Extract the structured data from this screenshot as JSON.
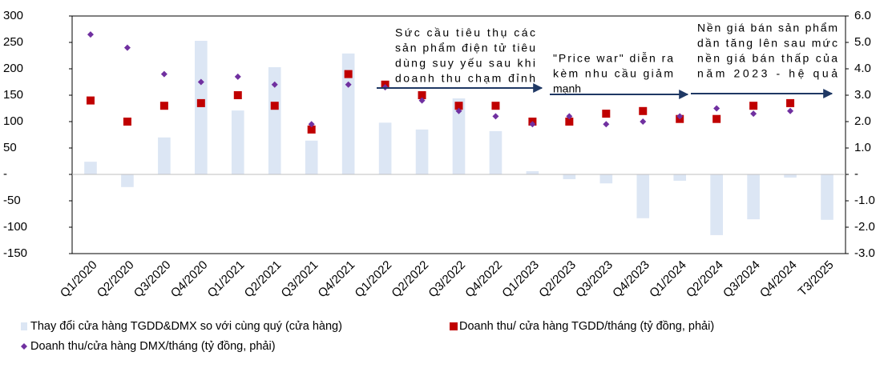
{
  "chart_data": {
    "type": "bar",
    "categories": [
      "Q1/2020",
      "Q2/2020",
      "Q3/2020",
      "Q4/2020",
      "Q1/2021",
      "Q2/2021",
      "Q3/2021",
      "Q4/2021",
      "Q1/2022",
      "Q2/2022",
      "Q3/2022",
      "Q4/2022",
      "Q1/2023",
      "Q2/2023",
      "Q3/2023",
      "Q4/2023",
      "Q1/2024",
      "Q2/2024",
      "Q3/2024",
      "Q4/2024",
      "T3/2025"
    ],
    "series": [
      {
        "name": "Thay đổi cửa hàng TGDD&DMX so với cùng quý (cửa hàng)",
        "type": "bar",
        "color": "#dce6f4",
        "values": [
          24,
          -24,
          70,
          253,
          121,
          203,
          64,
          229,
          98,
          85,
          144,
          82,
          6,
          -9,
          -17,
          -83,
          -12,
          -115,
          -85,
          -6,
          -86
        ]
      },
      {
        "name": "Doanh thu/ cửa hàng TGDD/tháng (tỷ đồng, phải)",
        "type": "scatter",
        "marker": "square",
        "axis": "y2",
        "color": "#c00000",
        "values": [
          2.8,
          2.0,
          2.6,
          2.7,
          3.0,
          2.6,
          1.7,
          3.8,
          3.4,
          3.0,
          2.6,
          2.6,
          2.0,
          2.0,
          2.3,
          2.4,
          2.1,
          2.1,
          2.6,
          2.7,
          null
        ]
      },
      {
        "name": "Doanh thu/cửa hàng DMX/tháng (tỷ đồng, phải)",
        "type": "scatter",
        "marker": "diamond",
        "axis": "y2",
        "color": "#7030a0",
        "values": [
          5.3,
          4.8,
          3.8,
          3.5,
          3.7,
          3.4,
          1.9,
          3.4,
          3.3,
          2.8,
          2.4,
          2.2,
          1.9,
          2.2,
          1.9,
          2.0,
          2.2,
          2.5,
          2.3,
          2.4,
          null
        ]
      }
    ],
    "ylim": [
      -150,
      300
    ],
    "yticks": [
      -150,
      -100,
      -50,
      {
        "value": 0,
        "label": "-"
      },
      50,
      100,
      150,
      200,
      250,
      300
    ],
    "y2lim": [
      -3,
      6
    ],
    "y2ticks": [
      {
        "value": -3,
        "label": "-3.0"
      },
      {
        "value": -2,
        "label": "-2.0"
      },
      {
        "value": -1,
        "label": "-1.0"
      },
      {
        "value": 0,
        "label": "-"
      },
      {
        "value": 1,
        "label": "1.0"
      },
      {
        "value": 2,
        "label": "2.0"
      },
      {
        "value": 3,
        "label": "3.0"
      },
      {
        "value": 4,
        "label": "4.0"
      },
      {
        "value": 5,
        "label": "5.0"
      },
      {
        "value": 6,
        "label": "6.0"
      }
    ],
    "annotations": [
      {
        "lines": [
          "Sức cầu tiêu thụ các",
          "sản phẩm điện tử tiêu",
          "dùng suy yếu sau khi",
          "doanh thu chạm đỉnh"
        ]
      },
      {
        "lines": [
          "\"Price war\" diễn ra",
          "kèm nhu cầu giảm",
          "mạnh"
        ]
      },
      {
        "lines": [
          "Nền giá bán sản phẩm",
          "dần tăng lên sau mức",
          "nền giá bán thấp của",
          "năm 2023 - hệ quả"
        ]
      }
    ]
  }
}
